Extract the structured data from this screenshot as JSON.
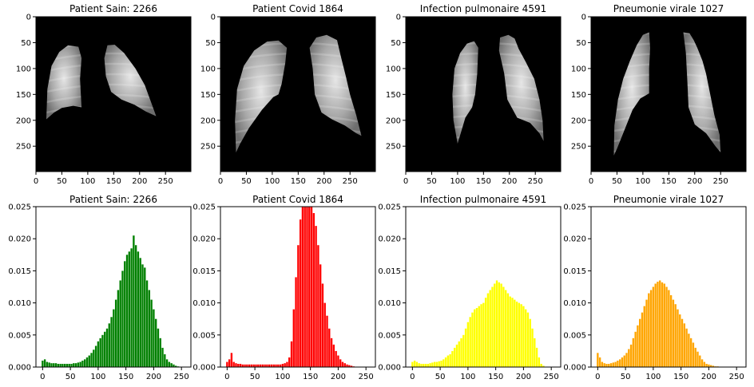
{
  "chart_data": [
    {
      "type": "image",
      "title": "Patient Sain: 2266",
      "xlim": [
        0,
        299
      ],
      "ylim": [
        299,
        0
      ],
      "xticks": [
        0,
        50,
        100,
        150,
        200,
        250
      ],
      "yticks": [
        0,
        50,
        100,
        150,
        200,
        250
      ],
      "lungs": [
        [
          [
            20,
            198
          ],
          [
            22,
            140
          ],
          [
            30,
            95
          ],
          [
            45,
            68
          ],
          [
            62,
            55
          ],
          [
            82,
            58
          ],
          [
            88,
            80
          ],
          [
            85,
            120
          ],
          [
            88,
            175
          ],
          [
            72,
            172
          ],
          [
            50,
            176
          ],
          [
            35,
            185
          ]
        ],
        [
          [
            138,
            55
          ],
          [
            152,
            54
          ],
          [
            170,
            70
          ],
          [
            192,
            100
          ],
          [
            210,
            132
          ],
          [
            224,
            170
          ],
          [
            232,
            192
          ],
          [
            212,
            183
          ],
          [
            190,
            170
          ],
          [
            165,
            160
          ],
          [
            145,
            145
          ],
          [
            135,
            115
          ],
          [
            132,
            80
          ]
        ]
      ]
    },
    {
      "type": "image",
      "title": "Patient Covid 1864",
      "xlim": [
        0,
        299
      ],
      "ylim": [
        299,
        0
      ],
      "xticks": [
        0,
        50,
        100,
        150,
        200,
        250
      ],
      "yticks": [
        0,
        50,
        100,
        150,
        200,
        250
      ],
      "lungs": [
        [
          [
            30,
            262
          ],
          [
            28,
            200
          ],
          [
            32,
            140
          ],
          [
            45,
            95
          ],
          [
            65,
            65
          ],
          [
            90,
            48
          ],
          [
            112,
            46
          ],
          [
            128,
            60
          ],
          [
            125,
            90
          ],
          [
            118,
            130
          ],
          [
            112,
            150
          ],
          [
            102,
            155
          ],
          [
            80,
            180
          ],
          [
            55,
            215
          ],
          [
            38,
            245
          ]
        ],
        [
          [
            185,
            40
          ],
          [
            205,
            35
          ],
          [
            225,
            45
          ],
          [
            232,
            75
          ],
          [
            242,
            115
          ],
          [
            250,
            150
          ],
          [
            262,
            190
          ],
          [
            272,
            230
          ],
          [
            262,
            225
          ],
          [
            240,
            210
          ],
          [
            215,
            198
          ],
          [
            195,
            185
          ],
          [
            182,
            150
          ],
          [
            178,
            100
          ],
          [
            172,
            60
          ]
        ]
      ]
    },
    {
      "type": "image",
      "title": "Infection pulmonaire 4591",
      "xlim": [
        0,
        299
      ],
      "ylim": [
        299,
        0
      ],
      "xticks": [
        0,
        50,
        100,
        150,
        200,
        250
      ],
      "yticks": [
        0,
        50,
        100,
        150,
        200,
        250
      ],
      "lungs": [
        [
          [
            100,
            245
          ],
          [
            92,
            200
          ],
          [
            90,
            150
          ],
          [
            94,
            100
          ],
          [
            105,
            70
          ],
          [
            118,
            52
          ],
          [
            132,
            47
          ],
          [
            140,
            60
          ],
          [
            138,
            110
          ],
          [
            134,
            150
          ],
          [
            128,
            175
          ],
          [
            115,
            195
          ],
          [
            106,
            225
          ]
        ],
        [
          [
            182,
            40
          ],
          [
            198,
            35
          ],
          [
            210,
            42
          ],
          [
            218,
            62
          ],
          [
            232,
            88
          ],
          [
            248,
            120
          ],
          [
            258,
            160
          ],
          [
            264,
            200
          ],
          [
            266,
            240
          ],
          [
            258,
            225
          ],
          [
            240,
            205
          ],
          [
            215,
            195
          ],
          [
            196,
            160
          ],
          [
            190,
            110
          ],
          [
            180,
            65
          ]
        ]
      ]
    },
    {
      "type": "image",
      "title": "Pneumonie virale 1027",
      "xlim": [
        0,
        299
      ],
      "ylim": [
        299,
        0
      ],
      "xticks": [
        0,
        50,
        100,
        150,
        200,
        250
      ],
      "yticks": [
        0,
        50,
        100,
        150,
        200,
        250
      ],
      "lungs": [
        [
          [
            44,
            268
          ],
          [
            45,
            210
          ],
          [
            52,
            160
          ],
          [
            62,
            120
          ],
          [
            75,
            85
          ],
          [
            88,
            55
          ],
          [
            100,
            35
          ],
          [
            112,
            30
          ],
          [
            114,
            60
          ],
          [
            112,
            100
          ],
          [
            112,
            148
          ],
          [
            95,
            158
          ],
          [
            80,
            180
          ],
          [
            62,
            225
          ],
          [
            50,
            255
          ]
        ],
        [
          [
            178,
            30
          ],
          [
            190,
            32
          ],
          [
            198,
            45
          ],
          [
            205,
            60
          ],
          [
            215,
            85
          ],
          [
            222,
            110
          ],
          [
            230,
            150
          ],
          [
            238,
            190
          ],
          [
            248,
            228
          ],
          [
            250,
            262
          ],
          [
            240,
            250
          ],
          [
            222,
            225
          ],
          [
            200,
            208
          ],
          [
            188,
            175
          ],
          [
            186,
            130
          ],
          [
            183,
            70
          ]
        ]
      ]
    },
    {
      "type": "bar",
      "title": "Patient Sain: 2266",
      "color": "#008000",
      "xlim": [
        -12,
        267
      ],
      "ylim": [
        0,
        0.025
      ],
      "xticks": [
        0,
        50,
        100,
        150,
        200,
        250
      ],
      "yticks": [
        0.0,
        0.005,
        0.01,
        0.015,
        0.02,
        0.025
      ],
      "ytick_labels": [
        "0.000",
        "0.005",
        "0.010",
        "0.015",
        "0.020",
        "0.025"
      ],
      "x": [
        0,
        4,
        8,
        12,
        16,
        20,
        24,
        28,
        32,
        36,
        40,
        44,
        48,
        52,
        56,
        60,
        64,
        68,
        72,
        76,
        80,
        84,
        88,
        92,
        96,
        100,
        104,
        108,
        112,
        116,
        120,
        124,
        128,
        132,
        136,
        140,
        144,
        148,
        152,
        156,
        160,
        164,
        168,
        172,
        176,
        180,
        184,
        188,
        192,
        196,
        200,
        204,
        208,
        212,
        216,
        220,
        224,
        228,
        232,
        236,
        240,
        244,
        248,
        252,
        256
      ],
      "y": [
        0.001,
        0.0012,
        0.0008,
        0.0007,
        0.0006,
        0.0006,
        0.0006,
        0.0005,
        0.0005,
        0.0005,
        0.0005,
        0.0005,
        0.0005,
        0.0005,
        0.0006,
        0.0006,
        0.0007,
        0.0008,
        0.001,
        0.0012,
        0.0015,
        0.0018,
        0.0022,
        0.0027,
        0.0033,
        0.004,
        0.0045,
        0.005,
        0.0055,
        0.006,
        0.0068,
        0.0078,
        0.009,
        0.0105,
        0.012,
        0.0135,
        0.015,
        0.0165,
        0.0175,
        0.018,
        0.0185,
        0.0205,
        0.019,
        0.018,
        0.017,
        0.016,
        0.0155,
        0.0135,
        0.012,
        0.0105,
        0.009,
        0.0075,
        0.006,
        0.0045,
        0.003,
        0.002,
        0.0012,
        0.0008,
        0.0006,
        0.0004,
        0.0002,
        0.0001,
        0,
        0,
        0
      ]
    },
    {
      "type": "bar",
      "title": "Patient Covid 1864",
      "color": "#ff0000",
      "xlim": [
        -12,
        267
      ],
      "ylim": [
        0,
        0.025
      ],
      "xticks": [
        0,
        50,
        100,
        150,
        200,
        250
      ],
      "yticks": [
        0.0,
        0.005,
        0.01,
        0.015,
        0.02,
        0.025
      ],
      "ytick_labels": [
        "0.000",
        "0.005",
        "0.010",
        "0.015",
        "0.020",
        "0.025"
      ],
      "x": [
        0,
        4,
        8,
        12,
        16,
        20,
        24,
        28,
        32,
        36,
        40,
        44,
        48,
        52,
        56,
        60,
        64,
        68,
        72,
        76,
        80,
        84,
        88,
        92,
        96,
        100,
        104,
        108,
        112,
        116,
        120,
        124,
        128,
        132,
        136,
        140,
        144,
        148,
        152,
        156,
        160,
        164,
        168,
        172,
        176,
        180,
        184,
        188,
        192,
        196,
        200,
        204,
        208,
        212,
        216,
        220,
        224,
        228,
        232,
        236,
        240,
        244,
        248,
        252,
        256
      ],
      "y": [
        0.0008,
        0.0012,
        0.0022,
        0.0008,
        0.0006,
        0.0005,
        0.0005,
        0.0004,
        0.0004,
        0.0004,
        0.0004,
        0.0004,
        0.0004,
        0.0004,
        0.0004,
        0.0004,
        0.0004,
        0.0004,
        0.0004,
        0.0004,
        0.0004,
        0.0004,
        0.0004,
        0.0004,
        0.0004,
        0.0005,
        0.0006,
        0.0008,
        0.0015,
        0.004,
        0.009,
        0.014,
        0.019,
        0.023,
        0.025,
        0.025,
        0.025,
        0.025,
        0.025,
        0.024,
        0.022,
        0.019,
        0.016,
        0.013,
        0.01,
        0.008,
        0.006,
        0.0045,
        0.0035,
        0.0025,
        0.0018,
        0.0012,
        0.0008,
        0.0006,
        0.0004,
        0.0003,
        0.0002,
        0.0001,
        0,
        0,
        0,
        0,
        0,
        0,
        0
      ]
    },
    {
      "type": "bar",
      "title": "Infection pulmonaire 4591",
      "color": "#ffff00",
      "xlim": [
        -12,
        267
      ],
      "ylim": [
        0,
        0.025
      ],
      "xticks": [
        0,
        50,
        100,
        150,
        200,
        250
      ],
      "yticks": [
        0.0,
        0.005,
        0.01,
        0.015,
        0.02,
        0.025
      ],
      "ytick_labels": [
        "0.000",
        "0.005",
        "0.010",
        "0.015",
        "0.020",
        "0.025"
      ],
      "x": [
        0,
        4,
        8,
        12,
        16,
        20,
        24,
        28,
        32,
        36,
        40,
        44,
        48,
        52,
        56,
        60,
        64,
        68,
        72,
        76,
        80,
        84,
        88,
        92,
        96,
        100,
        104,
        108,
        112,
        116,
        120,
        124,
        128,
        132,
        136,
        140,
        144,
        148,
        152,
        156,
        160,
        164,
        168,
        172,
        176,
        180,
        184,
        188,
        192,
        196,
        200,
        204,
        208,
        212,
        216,
        220,
        224,
        228,
        232,
        236,
        240,
        244,
        248,
        252,
        256
      ],
      "y": [
        0.0008,
        0.001,
        0.0008,
        0.0006,
        0.0005,
        0.0005,
        0.0005,
        0.0005,
        0.0006,
        0.0007,
        0.0008,
        0.0008,
        0.0009,
        0.001,
        0.0012,
        0.0015,
        0.0018,
        0.002,
        0.0025,
        0.003,
        0.0035,
        0.004,
        0.0045,
        0.005,
        0.006,
        0.007,
        0.0078,
        0.0085,
        0.009,
        0.0092,
        0.0095,
        0.0098,
        0.01,
        0.0108,
        0.0115,
        0.012,
        0.0125,
        0.013,
        0.0135,
        0.0132,
        0.013,
        0.0125,
        0.012,
        0.0115,
        0.011,
        0.0108,
        0.0105,
        0.0102,
        0.01,
        0.0098,
        0.0095,
        0.009,
        0.0085,
        0.0075,
        0.006,
        0.0045,
        0.003,
        0.0015,
        0.0005,
        0.0002,
        0,
        0,
        0,
        0,
        0
      ]
    },
    {
      "type": "bar",
      "title": "Pneumonie virale 1027",
      "color": "#ffa500",
      "xlim": [
        -12,
        267
      ],
      "ylim": [
        0,
        0.025
      ],
      "xticks": [
        0,
        50,
        100,
        150,
        200,
        250
      ],
      "yticks": [
        0.0,
        0.005,
        0.01,
        0.015,
        0.02,
        0.025
      ],
      "ytick_labels": [
        "0.000",
        "0.005",
        "0.010",
        "0.015",
        "0.020",
        "0.025"
      ],
      "x": [
        0,
        4,
        8,
        12,
        16,
        20,
        24,
        28,
        32,
        36,
        40,
        44,
        48,
        52,
        56,
        60,
        64,
        68,
        72,
        76,
        80,
        84,
        88,
        92,
        96,
        100,
        104,
        108,
        112,
        116,
        120,
        124,
        128,
        132,
        136,
        140,
        144,
        148,
        152,
        156,
        160,
        164,
        168,
        172,
        176,
        180,
        184,
        188,
        192,
        196,
        200,
        204,
        208,
        212,
        216,
        220,
        224,
        228,
        232,
        236,
        240,
        244,
        248,
        252,
        256
      ],
      "y": [
        0.0022,
        0.0015,
        0.0008,
        0.0006,
        0.0005,
        0.0005,
        0.0006,
        0.0007,
        0.0008,
        0.001,
        0.0012,
        0.0015,
        0.0018,
        0.0022,
        0.0028,
        0.0035,
        0.0045,
        0.0055,
        0.0065,
        0.0075,
        0.0085,
        0.0095,
        0.0105,
        0.0115,
        0.012,
        0.0125,
        0.013,
        0.0133,
        0.0135,
        0.0132,
        0.013,
        0.0125,
        0.012,
        0.0112,
        0.0105,
        0.0098,
        0.009,
        0.0082,
        0.0075,
        0.0068,
        0.006,
        0.0052,
        0.0045,
        0.0038,
        0.003,
        0.0024,
        0.0018,
        0.0012,
        0.0008,
        0.0005,
        0.0004,
        0.0003,
        0.0002,
        0.0001,
        0.0001,
        0,
        0,
        0,
        0,
        0,
        0,
        0,
        0,
        0,
        0
      ]
    }
  ]
}
